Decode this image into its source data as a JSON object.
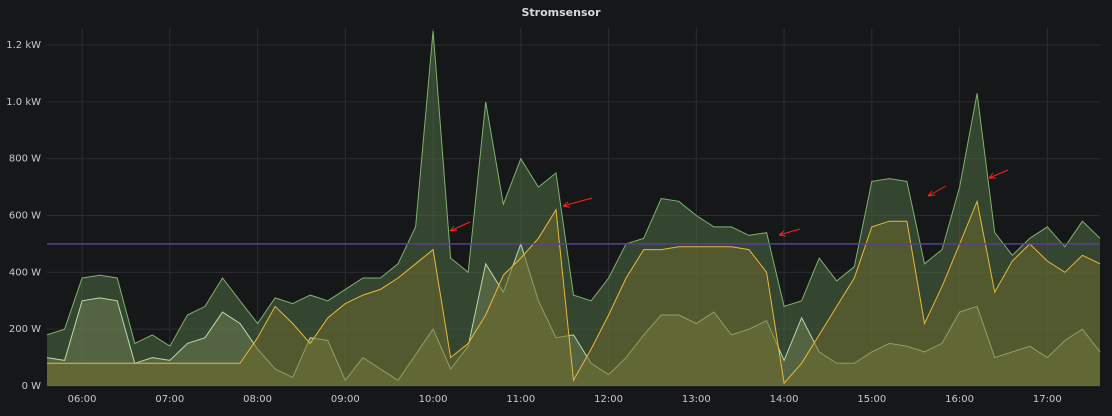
{
  "chart_data": {
    "type": "area",
    "title": "Stromsensor",
    "x": [
      5.6,
      5.8,
      6,
      6.2,
      6.4,
      6.6,
      6.8,
      7,
      7.2,
      7.4,
      7.6,
      7.8,
      8,
      8.2,
      8.4,
      8.6,
      8.8,
      9,
      9.2,
      9.4,
      9.6,
      9.8,
      10,
      10.2,
      10.4,
      10.6,
      10.8,
      11,
      11.2,
      11.4,
      11.6,
      11.8,
      12,
      12.2,
      12.4,
      12.6,
      12.8,
      13,
      13.2,
      13.4,
      13.6,
      13.8,
      14,
      14.2,
      14.4,
      14.6,
      14.8,
      15,
      15.2,
      15.4,
      15.6,
      15.8,
      16,
      16.2,
      16.4,
      16.6,
      16.8,
      17,
      17.2,
      17.4,
      17.6
    ],
    "series": [
      {
        "color": "#7eb26d",
        "fill": "#4e6b44",
        "values": [
          180,
          200,
          380,
          390,
          380,
          150,
          180,
          140,
          250,
          280,
          380,
          300,
          220,
          310,
          290,
          320,
          300,
          340,
          380,
          380,
          430,
          560,
          1250,
          450,
          400,
          1000,
          640,
          800,
          700,
          750,
          320,
          300,
          380,
          500,
          520,
          660,
          650,
          600,
          560,
          560,
          530,
          540,
          280,
          300,
          450,
          370,
          420,
          720,
          730,
          720,
          430,
          480,
          700,
          1030,
          540,
          460,
          520,
          560,
          490,
          580,
          520
        ]
      },
      {
        "color": "#b7dbab",
        "fill": "#6f7d52",
        "values": [
          100,
          90,
          300,
          310,
          300,
          80,
          100,
          90,
          150,
          170,
          260,
          220,
          130,
          60,
          30,
          170,
          160,
          20,
          100,
          60,
          20,
          110,
          200,
          60,
          140,
          430,
          330,
          500,
          300,
          170,
          180,
          80,
          40,
          100,
          180,
          250,
          250,
          220,
          260,
          180,
          200,
          230,
          90,
          240,
          120,
          80,
          80,
          120,
          150,
          140,
          120,
          150,
          260,
          280,
          100,
          120,
          140,
          100,
          160,
          200,
          120
        ]
      },
      {
        "color": "#eab839",
        "fill": "#6d6a2e",
        "values": [
          80,
          80,
          80,
          80,
          80,
          80,
          80,
          80,
          80,
          80,
          80,
          80,
          170,
          280,
          220,
          150,
          240,
          290,
          320,
          340,
          380,
          430,
          480,
          100,
          150,
          250,
          390,
          450,
          520,
          620,
          20,
          130,
          250,
          380,
          480,
          480,
          490,
          490,
          490,
          490,
          480,
          400,
          10,
          80,
          180,
          280,
          380,
          560,
          580,
          580,
          220,
          350,
          500,
          650,
          330,
          440,
          500,
          440,
          400,
          460,
          430
        ]
      }
    ],
    "threshold": 500,
    "threshold_color": "#5a3f9a",
    "xlim": [
      5.6,
      17.6
    ],
    "ylim": [
      0,
      1260
    ],
    "xticks": [
      {
        "value": 6,
        "label": "06:00"
      },
      {
        "value": 7,
        "label": "07:00"
      },
      {
        "value": 8,
        "label": "08:00"
      },
      {
        "value": 9,
        "label": "09:00"
      },
      {
        "value": 10,
        "label": "10:00"
      },
      {
        "value": 11,
        "label": "11:00"
      },
      {
        "value": 12,
        "label": "12:00"
      },
      {
        "value": 13,
        "label": "13:00"
      },
      {
        "value": 14,
        "label": "14:00"
      },
      {
        "value": 15,
        "label": "15:00"
      },
      {
        "value": 16,
        "label": "16:00"
      },
      {
        "value": 17,
        "label": "17:00"
      }
    ],
    "yticks": [
      {
        "value": 0,
        "label": "0 W"
      },
      {
        "value": 200,
        "label": "200 W"
      },
      {
        "value": 400,
        "label": "400 W"
      },
      {
        "value": 600,
        "label": "600 W"
      },
      {
        "value": 800,
        "label": "800 W"
      },
      {
        "value": 1000,
        "label": "1.0 kW"
      },
      {
        "value": 1200,
        "label": "1.2 kW"
      }
    ],
    "grid": true
  }
}
